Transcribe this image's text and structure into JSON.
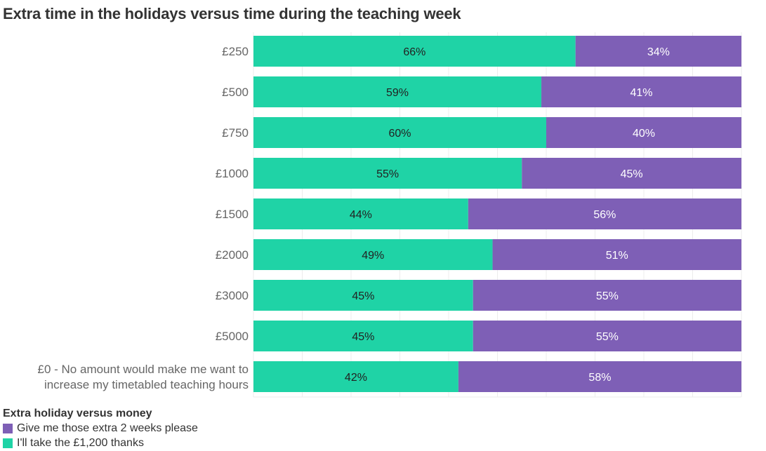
{
  "chart_data": {
    "type": "bar",
    "orientation": "horizontal",
    "stacked": true,
    "title": "Extra time in the holidays versus time during the teaching week",
    "categories": [
      "£250",
      "£500",
      "£750",
      "£1000",
      "£1500",
      "£2000",
      "£3000",
      "£5000",
      "£0 - No amount would make me want to increase my timetabled teaching hours"
    ],
    "series": [
      {
        "name": "I'll take the £1,200 thanks",
        "color": "#1fd3a6",
        "label_color": "#222222",
        "values": [
          66,
          59,
          60,
          55,
          44,
          49,
          45,
          45,
          42
        ]
      },
      {
        "name": "Give me those extra 2 weeks please",
        "color": "#7e5fb6",
        "label_color": "#ffffff",
        "values": [
          34,
          41,
          40,
          45,
          56,
          51,
          55,
          55,
          58
        ]
      }
    ],
    "value_suffix": "%",
    "xlim": [
      0,
      100
    ],
    "grid": true,
    "legend": {
      "title": "Extra holiday versus money",
      "placement": "bottom-left",
      "order": [
        "Give me those extra 2 weeks please",
        "I'll take the £1,200 thanks"
      ]
    }
  }
}
